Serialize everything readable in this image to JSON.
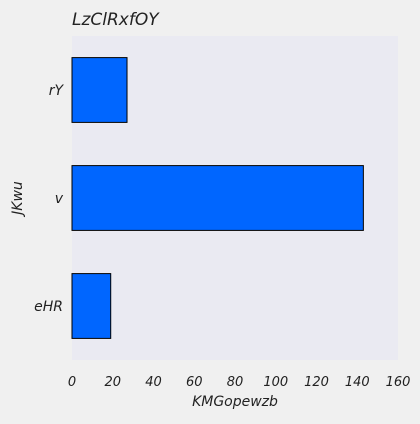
{
  "chart_data": {
    "type": "bar",
    "orientation": "horizontal",
    "title": "LzClRxfOY",
    "xlabel": "KMGopewzb",
    "ylabel": "JKwu",
    "categories": [
      "rY",
      "v",
      "eHR"
    ],
    "values": [
      27,
      143,
      19
    ],
    "xlim": [
      0,
      160
    ],
    "xticks": [
      0,
      20,
      40,
      60,
      80,
      100,
      120,
      140,
      160
    ],
    "grid": false,
    "legend": "none",
    "colors": {
      "bar": "#0066ff",
      "bar_edge": "#000000",
      "plot_bg": "#eaeaf2",
      "page_bg": "#f0f0f0"
    }
  }
}
